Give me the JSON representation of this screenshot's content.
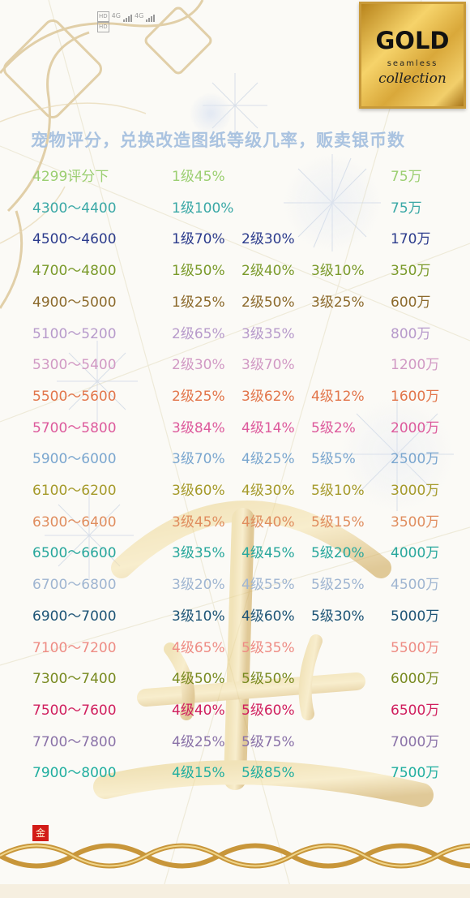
{
  "status_bar": {
    "hd_a": "HD",
    "hd_b": "HD",
    "net_a": "4G",
    "net_b": "4G"
  },
  "logo": {
    "line1": "GOLD",
    "line2": "seamless",
    "line3": "collection"
  },
  "title": "宠物评分，兑换改造图纸等级几率，贩卖银币数",
  "stamp": "金",
  "rows": [
    {
      "range": "4299评分下",
      "g1": "1级45%",
      "g2": "",
      "g3": "",
      "price": "75万",
      "color": "#9ccf72"
    },
    {
      "range": "4300～4400",
      "g1": "1级100%",
      "g2": "",
      "g3": "",
      "price": "75万",
      "color": "#3aa8a6"
    },
    {
      "range": "4500～4600",
      "g1": "1级70%",
      "g2": "2级30%",
      "g3": "",
      "price": "170万",
      "color": "#2b3b8c"
    },
    {
      "range": "4700～4800",
      "g1": "1级50%",
      "g2": "2级40%",
      "g3": "3级10%",
      "price": "350万",
      "color": "#7a9a2a"
    },
    {
      "range": "4900～5000",
      "g1": "1级25%",
      "g2": "2级50%",
      "g3": "3级25%",
      "price": "600万",
      "color": "#8c6a2c"
    },
    {
      "range": "5100～5200",
      "g1": "2级65%",
      "g2": "3级35%",
      "g3": "",
      "price": "800万",
      "color": "#b79acb"
    },
    {
      "range": "5300～5400",
      "g1": "2级30%",
      "g2": "3级70%",
      "g3": "",
      "price": "1200万",
      "color": "#d199c4"
    },
    {
      "range": "5500～5600",
      "g1": "2级25%",
      "g2": "3级62%",
      "g3": "4级12%",
      "price": "1600万",
      "color": "#e2754a"
    },
    {
      "range": "5700～5800",
      "g1": "3级84%",
      "g2": "4级14%",
      "g3": "5级2%",
      "price": "2000万",
      "color": "#dd5a9c"
    },
    {
      "range": "5900～6000",
      "g1": "3级70%",
      "g2": "4级25%",
      "g3": "5级5%",
      "price": "2500万",
      "color": "#7aa6cf"
    },
    {
      "range": "6100～6200",
      "g1": "3级60%",
      "g2": "4级30%",
      "g3": "5级10%",
      "price": "3000万",
      "color": "#a59a2a"
    },
    {
      "range": "6300～6400",
      "g1": "3级45%",
      "g2": "4级40%",
      "g3": "5级15%",
      "price": "3500万",
      "color": "#e08d5e"
    },
    {
      "range": "6500～6600",
      "g1": "3级35%",
      "g2": "4级45%",
      "g3": "5级20%",
      "price": "4000万",
      "color": "#27a79c"
    },
    {
      "range": "6700～6800",
      "g1": "3级20%",
      "g2": "4级55%",
      "g3": "5级25%",
      "price": "4500万",
      "color": "#9fb5d1"
    },
    {
      "range": "6900～7000",
      "g1": "3级10%",
      "g2": "4级60%",
      "g3": "5级30%",
      "price": "5000万",
      "color": "#1d5476"
    },
    {
      "range": "7100～7200",
      "g1": "4级65%",
      "g2": "5级35%",
      "g3": "",
      "price": "5500万",
      "color": "#ee8c84"
    },
    {
      "range": "7300～7400",
      "g1": "4级50%",
      "g2": "5级50%",
      "g3": "",
      "price": "6000万",
      "color": "#788a20"
    },
    {
      "range": "7500～7600",
      "g1": "4级40%",
      "g2": "5级60%",
      "g3": "",
      "price": "6500万",
      "color": "#d01f5e"
    },
    {
      "range": "7700～7800",
      "g1": "4级25%",
      "g2": "5级75%",
      "g3": "",
      "price": "7000万",
      "color": "#8a72a8"
    },
    {
      "range": "7900～8000",
      "g1": "4级15%",
      "g2": "5级85%",
      "g3": "",
      "price": "7500万",
      "color": "#1fae9f"
    }
  ]
}
